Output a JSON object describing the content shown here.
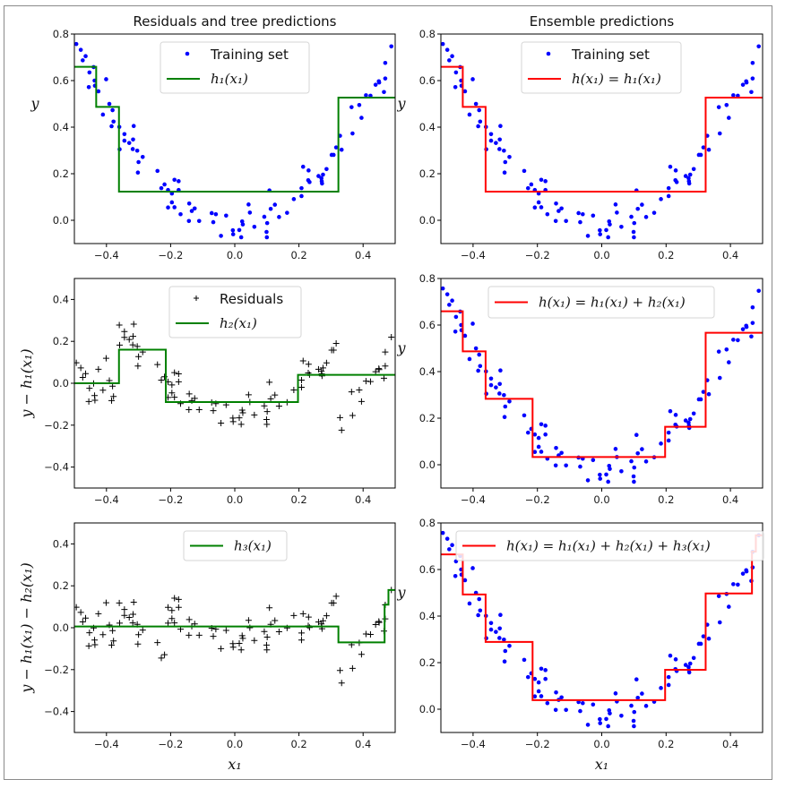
{
  "colors": {
    "points": "#0000ff",
    "residuals": "#000000",
    "tree_line": "#008000",
    "ensemble_line": "#ff0000",
    "axes": "#000000"
  },
  "chart_data": [
    {
      "id": "residuals-1",
      "type": "scatter+step",
      "title": "Residuals and tree predictions",
      "xlabel": "",
      "ylabel": "y",
      "xlim": [
        -0.5,
        0.5
      ],
      "ylim": [
        -0.1,
        0.8
      ],
      "xticks": [
        -0.4,
        -0.2,
        0.0,
        0.2,
        0.4
      ],
      "xtick_labels": [
        "−0.4",
        "−0.2",
        "0.0",
        "0.2",
        "0.4"
      ],
      "yticks": [
        0.0,
        0.2,
        0.4,
        0.6,
        0.8
      ],
      "ytick_labels": [
        "0.0",
        "0.2",
        "0.4",
        "0.6",
        "0.8"
      ],
      "legend": [
        "Training set",
        "h₁(x₁)"
      ],
      "legend_position": "upper-center",
      "scatter_series": "training",
      "marker": "dot",
      "line_color": "tree_line",
      "step": {
        "breaks": [
          -0.432,
          -0.361,
          0.323
        ],
        "levels": [
          0.659,
          0.487,
          0.123,
          0.527
        ]
      }
    },
    {
      "id": "ensemble-1",
      "type": "scatter+step",
      "title": "Ensemble predictions",
      "xlabel": "",
      "ylabel": "y",
      "xlim": [
        -0.5,
        0.5
      ],
      "ylim": [
        -0.1,
        0.8
      ],
      "xticks": [
        -0.4,
        -0.2,
        0.0,
        0.2,
        0.4
      ],
      "xtick_labels": [
        "−0.4",
        "−0.2",
        "0.0",
        "0.2",
        "0.4"
      ],
      "yticks": [
        0.0,
        0.2,
        0.4,
        0.6,
        0.8
      ],
      "ytick_labels": [
        "0.0",
        "0.2",
        "0.4",
        "0.6",
        "0.8"
      ],
      "legend": [
        "Training set",
        "h(x₁) = h₁(x₁)"
      ],
      "legend_position": "upper-center",
      "scatter_series": "training",
      "marker": "dot",
      "line_color": "ensemble_line",
      "step": {
        "breaks": [
          -0.432,
          -0.361,
          0.323
        ],
        "levels": [
          0.659,
          0.487,
          0.123,
          0.527
        ]
      }
    },
    {
      "id": "residuals-2",
      "type": "scatter+step",
      "title": "",
      "xlabel": "",
      "ylabel": "y − h₁(x₁)",
      "xlim": [
        -0.5,
        0.5
      ],
      "ylim": [
        -0.5,
        0.5
      ],
      "xticks": [
        -0.4,
        -0.2,
        0.0,
        0.2,
        0.4
      ],
      "xtick_labels": [
        "−0.4",
        "−0.2",
        "0.0",
        "0.2",
        "0.4"
      ],
      "yticks": [
        -0.4,
        -0.2,
        0.0,
        0.2,
        0.4
      ],
      "ytick_labels": [
        "−0.4",
        "−0.2",
        "0.0",
        "0.2",
        "0.4"
      ],
      "legend": [
        "Residuals",
        "h₂(x₁)"
      ],
      "legend_position": "upper-center",
      "scatter_series": "residuals_after_h1",
      "marker": "plus",
      "line_color": "tree_line",
      "step": {
        "breaks": [
          -0.361,
          -0.215,
          0.197
        ],
        "levels": [
          0.0,
          0.16,
          -0.09,
          0.04
        ]
      }
    },
    {
      "id": "ensemble-2",
      "type": "scatter+step",
      "title": "",
      "xlabel": "",
      "ylabel": "y",
      "xlim": [
        -0.5,
        0.5
      ],
      "ylim": [
        -0.1,
        0.8
      ],
      "xticks": [
        -0.4,
        -0.2,
        0.0,
        0.2,
        0.4
      ],
      "xtick_labels": [
        "−0.4",
        "−0.2",
        "0.0",
        "0.2",
        "0.4"
      ],
      "yticks": [
        0.0,
        0.2,
        0.4,
        0.6,
        0.8
      ],
      "ytick_labels": [
        "0.0",
        "0.2",
        "0.4",
        "0.6",
        "0.8"
      ],
      "legend": [
        "h(x₁) = h₁(x₁) + h₂(x₁)"
      ],
      "legend_position": "upper-center",
      "scatter_series": "training",
      "marker": "dot",
      "line_color": "ensemble_line",
      "step": {
        "breaks": [
          -0.432,
          -0.361,
          -0.215,
          0.197,
          0.323
        ],
        "levels": [
          0.659,
          0.487,
          0.283,
          0.033,
          0.163,
          0.567
        ]
      }
    },
    {
      "id": "residuals-3",
      "type": "scatter+step",
      "title": "",
      "xlabel": "x₁",
      "ylabel": "y − h₁(x₁) − h₂(x₁)",
      "xlim": [
        -0.5,
        0.5
      ],
      "ylim": [
        -0.5,
        0.5
      ],
      "xticks": [
        -0.4,
        -0.2,
        0.0,
        0.2,
        0.4
      ],
      "xtick_labels": [
        "−0.4",
        "−0.2",
        "0.0",
        "0.2",
        "0.4"
      ],
      "yticks": [
        -0.4,
        -0.2,
        0.0,
        0.2,
        0.4
      ],
      "ytick_labels": [
        "−0.4",
        "−0.2",
        "0.0",
        "0.2",
        "0.4"
      ],
      "legend": [
        "h₃(x₁)"
      ],
      "legend_position": "upper-center",
      "scatter_series": "residuals_after_h2",
      "marker": "plus",
      "line_color": "tree_line",
      "step": {
        "breaks": [
          0.323,
          0.467,
          0.479
        ],
        "levels": [
          0.006,
          -0.07,
          0.11,
          0.18
        ]
      }
    },
    {
      "id": "ensemble-3",
      "type": "scatter+step",
      "title": "",
      "xlabel": "x₁",
      "ylabel": "y",
      "xlim": [
        -0.5,
        0.5
      ],
      "ylim": [
        -0.1,
        0.8
      ],
      "xticks": [
        -0.4,
        -0.2,
        0.0,
        0.2,
        0.4
      ],
      "xtick_labels": [
        "−0.4",
        "−0.2",
        "0.0",
        "0.2",
        "0.4"
      ],
      "yticks": [
        0.0,
        0.2,
        0.4,
        0.6,
        0.8
      ],
      "ytick_labels": [
        "0.0",
        "0.2",
        "0.4",
        "0.6",
        "0.8"
      ],
      "legend": [
        "h(x₁) = h₁(x₁) + h₂(x₁) + h₃(x₁)"
      ],
      "legend_position": "upper-center",
      "scatter_series": "training",
      "marker": "dot",
      "line_color": "ensemble_line",
      "step": {
        "breaks": [
          -0.432,
          -0.361,
          -0.215,
          0.197,
          0.323,
          0.467,
          0.479
        ],
        "levels": [
          0.665,
          0.493,
          0.289,
          0.039,
          0.169,
          0.497,
          0.677,
          0.747
        ]
      }
    }
  ],
  "training_set": {
    "x": [
      -0.494,
      -0.48,
      -0.474,
      -0.465,
      -0.453,
      -0.455,
      -0.44,
      -0.437,
      -0.436,
      -0.425,
      -0.401,
      -0.411,
      -0.391,
      -0.381,
      -0.378,
      -0.384,
      -0.36,
      -0.359,
      -0.344,
      -0.344,
      -0.329,
      -0.317,
      -0.315,
      -0.318,
      -0.304,
      -0.3,
      -0.287,
      -0.302,
      -0.241,
      -0.229,
      -0.219,
      -0.208,
      -0.196,
      -0.188,
      -0.175,
      -0.175,
      -0.196,
      -0.208,
      -0.188,
      -0.169,
      -0.142,
      -0.134,
      -0.125,
      -0.143,
      -0.111,
      -0.072,
      -0.059,
      -0.067,
      -0.027,
      -0.043,
      -0.006,
      -0.005,
      0.014,
      0.02,
      0.023,
      0.025,
      0.043,
      0.047,
      0.061,
      0.092,
      0.099,
      0.1,
      0.101,
      0.108,
      0.112,
      0.125,
      0.138,
      0.163,
      0.184,
      0.208,
      0.208,
      0.213,
      0.23,
      0.229,
      0.233,
      0.261,
      0.27,
      0.271,
      0.272,
      0.275,
      0.286,
      0.302,
      0.308,
      0.316,
      0.328,
      0.333,
      0.364,
      0.367,
      0.388,
      0.395,
      0.409,
      0.423,
      0.439,
      0.449,
      0.45,
      0.465,
      0.469,
      0.469,
      0.488
    ],
    "y": [
      0.757,
      0.732,
      0.687,
      0.705,
      0.635,
      0.572,
      0.658,
      0.6,
      0.578,
      0.554,
      0.606,
      0.454,
      0.5,
      0.473,
      0.424,
      0.404,
      0.401,
      0.305,
      0.37,
      0.342,
      0.332,
      0.347,
      0.405,
      0.306,
      0.299,
      0.25,
      0.272,
      0.205,
      0.212,
      0.138,
      0.154,
      0.13,
      0.115,
      0.174,
      0.168,
      0.13,
      0.077,
      0.055,
      0.056,
      0.026,
      0.072,
      0.04,
      0.051,
      -0.003,
      -0.003,
      0.031,
      0.026,
      -0.008,
      0.02,
      -0.067,
      -0.043,
      -0.06,
      -0.042,
      -0.073,
      -0.005,
      -0.018,
      0.068,
      0.033,
      -0.028,
      0.015,
      -0.05,
      -0.073,
      -0.012,
      0.128,
      0.049,
      0.067,
      0.014,
      0.032,
      0.091,
      0.104,
      0.138,
      0.23,
      0.214,
      0.172,
      0.164,
      0.19,
      0.181,
      0.168,
      0.158,
      0.196,
      0.22,
      0.281,
      0.281,
      0.313,
      0.363,
      0.303,
      0.486,
      0.373,
      0.495,
      0.44,
      0.537,
      0.535,
      0.582,
      0.597,
      0.592,
      0.551,
      0.609,
      0.676,
      0.747
    ]
  }
}
